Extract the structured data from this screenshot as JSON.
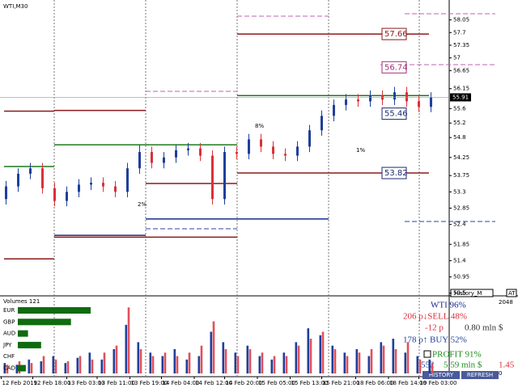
{
  "window_title": "WTI,M30",
  "volume_title": "Volumes 121",
  "history_box": "History_M",
  "corner_box": "AT",
  "annotations": [
    "8%",
    "1%",
    "2%"
  ],
  "chart_data": [
    {
      "type": "candlestick",
      "open": [
        53.1,
        53.45,
        53.8,
        53.95,
        53.4,
        53.05,
        53.3,
        53.5,
        53.55,
        53.45,
        53.3,
        53.95,
        54.4,
        54.1,
        54.25,
        54.45,
        54.5,
        54.3,
        53.1,
        54.4,
        54.35,
        54.75,
        54.55,
        54.35,
        54.3,
        54.55,
        55.0,
        55.4,
        55.7,
        55.85,
        55.8,
        55.95,
        55.85,
        56.05,
        55.8,
        55.65
      ],
      "high": [
        53.6,
        53.95,
        54.1,
        54.1,
        53.55,
        53.45,
        53.65,
        53.7,
        53.7,
        53.6,
        54.1,
        54.6,
        54.55,
        54.4,
        54.6,
        54.65,
        54.65,
        54.45,
        54.55,
        54.55,
        54.9,
        54.9,
        54.7,
        54.5,
        54.7,
        55.15,
        55.55,
        55.85,
        56.0,
        56.0,
        56.1,
        56.1,
        56.2,
        56.2,
        55.95,
        56.05
      ],
      "low": [
        52.95,
        53.3,
        53.65,
        53.25,
        52.9,
        52.9,
        53.15,
        53.35,
        53.3,
        53.15,
        53.15,
        53.8,
        53.95,
        53.95,
        54.1,
        54.3,
        54.15,
        52.95,
        52.95,
        54.2,
        54.2,
        54.4,
        54.2,
        54.15,
        54.15,
        54.4,
        54.85,
        55.25,
        55.55,
        55.65,
        55.65,
        55.7,
        55.7,
        55.65,
        55.5,
        55.5
      ],
      "close": [
        53.45,
        53.8,
        53.95,
        53.4,
        53.05,
        53.3,
        53.5,
        53.55,
        53.45,
        53.3,
        53.95,
        54.4,
        54.1,
        54.25,
        54.45,
        54.5,
        54.3,
        53.1,
        54.4,
        54.35,
        54.75,
        54.55,
        54.35,
        54.3,
        54.55,
        55.0,
        55.4,
        55.7,
        55.85,
        55.8,
        55.95,
        55.85,
        56.05,
        55.8,
        55.65,
        55.91
      ],
      "up_color": "#1f3f9a",
      "down_color": "#d9303a",
      "xlim": [
        -0.5,
        36.0
      ],
      "xticks": [
        {
          "value": -0.4,
          "label": "12 Feb 2019"
        },
        {
          "value": 2.2,
          "label": "12 Feb 18:00"
        },
        {
          "value": 5,
          "label": "13 Feb 03:00"
        },
        {
          "value": 7.5,
          "label": "13 Feb 11:00"
        },
        {
          "value": 10.2,
          "label": "13 Feb 19:00"
        },
        {
          "value": 12.8,
          "label": "14 Feb 04:00"
        },
        {
          "value": 15.5,
          "label": "14 Feb 12:00"
        },
        {
          "value": 18,
          "label": "14 Feb 20:00"
        },
        {
          "value": 20.7,
          "label": "15 Feb 05:00"
        },
        {
          "value": 23.4,
          "label": "15 Feb 13:00"
        },
        {
          "value": 26,
          "label": "15 Feb 21:00"
        },
        {
          "value": 28.8,
          "label": "18 Feb 06:00"
        },
        {
          "value": 31.5,
          "label": "18 Feb 14:00"
        },
        {
          "value": 34,
          "label": "19 Feb 03:00"
        }
      ],
      "ylim": [
        50.07,
        58.51
      ],
      "yticks": [
        58.05,
        57.7,
        57.35,
        57.0,
        56.65,
        56.15,
        55.6,
        55.2,
        54.8,
        54.25,
        53.75,
        53.3,
        52.85,
        52.4,
        51.85,
        51.4,
        50.95,
        50.5
      ],
      "current_price": 55.91,
      "levels": [
        {
          "color": "#8b1a1a",
          "values": [
            55.53,
            55.55,
            53.53,
            57.66,
            57.66
          ]
        },
        {
          "color": "#8b1a1a",
          "values": [
            51.45,
            52.05,
            52.05,
            53.82,
            53.82
          ]
        },
        {
          "color": "#1d7a1d",
          "values": [
            54.0,
            54.6,
            54.6,
            55.96,
            55.96
          ]
        },
        {
          "color": "#1a2a8f",
          "values": [
            null,
            52.1,
            52.55,
            52.55,
            null
          ]
        }
      ],
      "price_boxes": [
        {
          "value": 57.66,
          "color": "#8b1a1a"
        },
        {
          "value": 56.74,
          "color": "#a0307a"
        },
        {
          "value": 55.46,
          "color": "#1a2a6f"
        },
        {
          "value": 53.82,
          "color": "#1a2a6f"
        }
      ]
    },
    {
      "type": "bar",
      "ylim": [
        0,
        2048
      ],
      "yticks": [
        2048,
        0
      ],
      "series": [
        {
          "color": "#1f3f9a",
          "values": [
            300,
            250,
            400,
            350,
            500,
            300,
            450,
            600,
            400,
            700,
            1400,
            900,
            600,
            500,
            700,
            400,
            500,
            1200,
            900,
            600,
            800,
            500,
            400,
            600,
            900,
            1300,
            1100,
            800,
            600,
            700,
            500,
            900,
            1000,
            600,
            500,
            400
          ]
        },
        {
          "color": "#e0505a",
          "values": [
            250,
            350,
            300,
            500,
            400,
            350,
            500,
            400,
            600,
            800,
            1900,
            700,
            500,
            600,
            500,
            600,
            800,
            1500,
            700,
            500,
            700,
            600,
            500,
            500,
            800,
            1000,
            1200,
            700,
            500,
            600,
            700,
            800,
            700,
            900,
            400,
            300
          ]
        }
      ]
    }
  ],
  "currency_strength": {
    "xlim": [
      0,
      100
    ],
    "color": "#0f6b0f",
    "rows": [
      {
        "name": "EUR",
        "value": 100
      },
      {
        "name": "GBP",
        "value": 73
      },
      {
        "name": "AUD",
        "value": 14
      },
      {
        "name": "JPY",
        "value": 32
      },
      {
        "name": "CHF",
        "value": 0
      },
      {
        "name": "CAD",
        "value": 11
      }
    ]
  },
  "stats": {
    "symbol": "WTI 96%",
    "sell": "206 p↓SELL 48%",
    "sell_pips": "-12 p",
    "volume": "0.80 mln $",
    "buy": "178 p↑ BUY 52%",
    "profit": "PROFIT 91%",
    "count": "552",
    "profit_volume": "5.59 mln $",
    "ratio": "1.45"
  },
  "buttons": [
    "HISTORY",
    "REFRESH"
  ]
}
